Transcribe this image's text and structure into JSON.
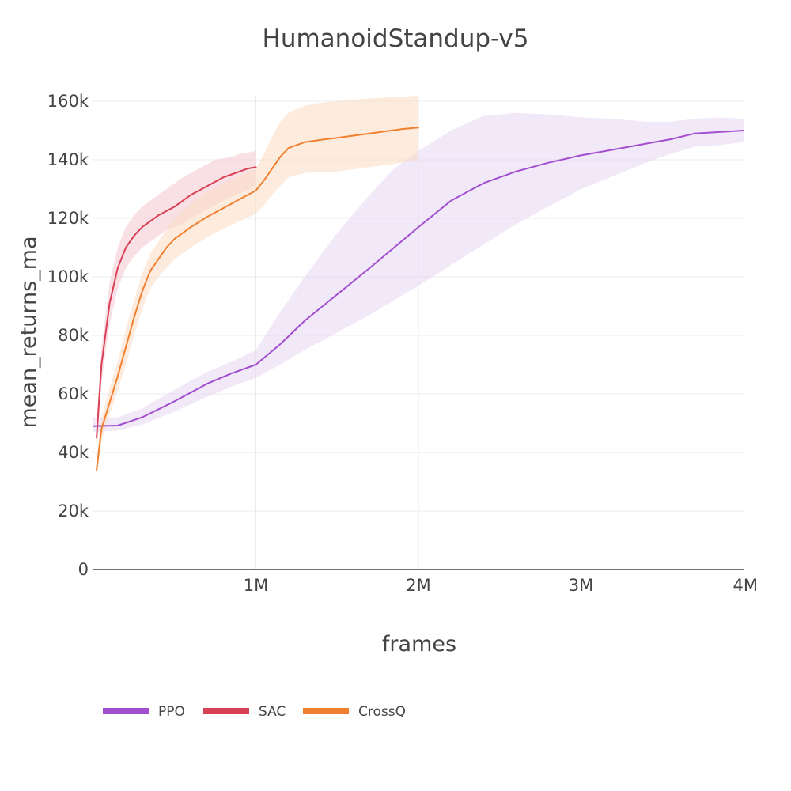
{
  "chart_data": {
    "type": "line",
    "title": "HumanoidStandup-v5",
    "xlabel": "frames",
    "ylabel": "mean_returns_ma",
    "xlim": [
      0,
      4000000
    ],
    "ylim": [
      0,
      160000
    ],
    "x_ticks": [
      {
        "value": 1000000,
        "label": "1M"
      },
      {
        "value": 2000000,
        "label": "2M"
      },
      {
        "value": 3000000,
        "label": "3M"
      },
      {
        "value": 4000000,
        "label": "4M"
      }
    ],
    "y_ticks": [
      {
        "value": 0,
        "label": "0"
      },
      {
        "value": 20000,
        "label": "20k"
      },
      {
        "value": 40000,
        "label": "40k"
      },
      {
        "value": 60000,
        "label": "60k"
      },
      {
        "value": 80000,
        "label": "80k"
      },
      {
        "value": 100000,
        "label": "100k"
      },
      {
        "value": 120000,
        "label": "120k"
      },
      {
        "value": 140000,
        "label": "140k"
      },
      {
        "value": 160000,
        "label": "160k"
      }
    ],
    "grid": true,
    "legend_position": "bottom-left",
    "series": [
      {
        "name": "PPO",
        "color": "#a24fcf",
        "band_color": "#e6d5f3",
        "x": [
          0,
          150000,
          300000,
          500000,
          700000,
          850000,
          1000000,
          1150000,
          1300000,
          1500000,
          1700000,
          1850000,
          2000000,
          2200000,
          2400000,
          2600000,
          2800000,
          3000000,
          3200000,
          3400000,
          3550000,
          3700000,
          3850000,
          4000000
        ],
        "y": [
          49000,
          49200,
          52000,
          57500,
          63500,
          67000,
          70000,
          77000,
          85000,
          94000,
          103000,
          110000,
          117000,
          126000,
          132000,
          136000,
          139000,
          141500,
          143500,
          145500,
          147000,
          149000,
          149500,
          150000
        ],
        "upper": [
          52000,
          52000,
          55000,
          61500,
          67500,
          71000,
          75000,
          88000,
          100000,
          115000,
          128000,
          137000,
          143000,
          150000,
          155000,
          156000,
          155500,
          154500,
          154000,
          153000,
          153000,
          154000,
          154500,
          154000
        ],
        "lower": [
          47000,
          47500,
          49500,
          54000,
          59000,
          62500,
          65500,
          70000,
          75000,
          81000,
          87000,
          92000,
          97000,
          104000,
          111000,
          118000,
          124000,
          130000,
          134500,
          139000,
          142000,
          144500,
          145000,
          146000
        ]
      },
      {
        "name": "SAC",
        "color": "#d94056",
        "band_color": "#f4c6cf",
        "x": [
          20000,
          50000,
          100000,
          150000,
          200000,
          250000,
          300000,
          350000,
          400000,
          450000,
          500000,
          550000,
          600000,
          650000,
          700000,
          750000,
          800000,
          850000,
          900000,
          950000,
          1000000
        ],
        "y": [
          45000,
          70000,
          91000,
          103000,
          110000,
          114000,
          117000,
          119000,
          121000,
          122500,
          124000,
          126000,
          128000,
          129500,
          131000,
          132500,
          134000,
          135000,
          136000,
          137000,
          137500
        ],
        "upper": [
          50000,
          76000,
          98000,
          110000,
          117000,
          121000,
          124000,
          126000,
          128000,
          130000,
          132000,
          134000,
          135500,
          137000,
          138500,
          140000,
          140500,
          141000,
          142000,
          142500,
          143000
        ],
        "lower": [
          40000,
          64000,
          84000,
          96000,
          103000,
          107000,
          110000,
          112000,
          114000,
          116000,
          117000,
          118000,
          120000,
          121500,
          123000,
          124500,
          126000,
          127500,
          128500,
          129500,
          131000
        ]
      },
      {
        "name": "CrossQ",
        "color": "#f0802f",
        "band_color": "#fbdcc3",
        "x": [
          20000,
          50000,
          100000,
          150000,
          200000,
          250000,
          300000,
          350000,
          400000,
          450000,
          500000,
          600000,
          700000,
          800000,
          900000,
          1000000,
          1050000,
          1100000,
          1150000,
          1200000,
          1300000,
          1400000,
          1500000,
          1700000,
          1900000,
          2000000
        ],
        "y": [
          34000,
          48000,
          57000,
          66000,
          76000,
          86000,
          95000,
          102000,
          106000,
          110000,
          113000,
          117000,
          120500,
          123500,
          126500,
          129500,
          133000,
          137000,
          141000,
          144000,
          146000,
          146800,
          147500,
          149000,
          150500,
          151000
        ],
        "upper": [
          38000,
          52000,
          62000,
          71000,
          82000,
          92000,
          101000,
          108000,
          112000,
          116000,
          120000,
          125000,
          129000,
          132000,
          134500,
          137000,
          142000,
          148000,
          153000,
          156000,
          158500,
          159500,
          160000,
          161000,
          161500,
          162000
        ],
        "lower": [
          30000,
          44000,
          53000,
          61000,
          70000,
          80000,
          89000,
          96000,
          100000,
          103000,
          106000,
          110000,
          113500,
          116500,
          119000,
          121500,
          124500,
          128000,
          131000,
          134000,
          135500,
          135800,
          136000,
          137500,
          139000,
          140000
        ]
      }
    ]
  }
}
